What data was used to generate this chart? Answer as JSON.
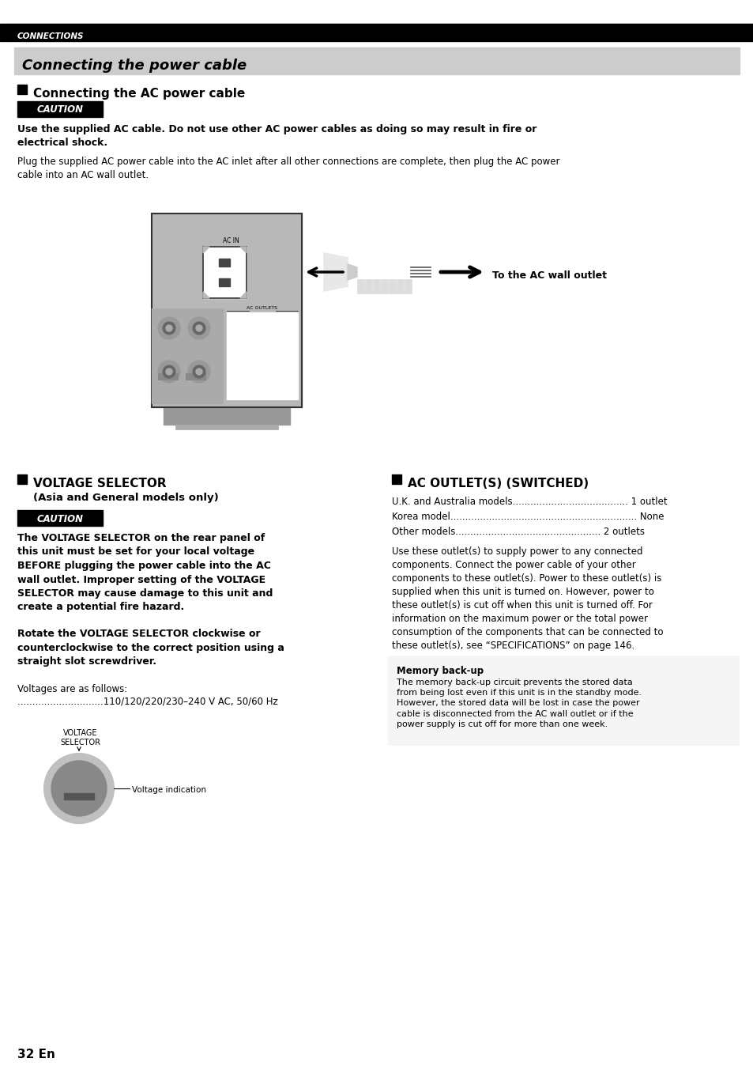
{
  "page_bg": "#ffffff",
  "header_bar_color": "#000000",
  "header_text": "CONNECTIONS",
  "header_text_color": "#ffffff",
  "title_bg": "#cccccc",
  "title_text": "Connecting the power cable",
  "title_text_color": "#000000",
  "section1_heading": "Connecting the AC power cable",
  "caution_bg": "#000000",
  "caution_text": "CAUTION",
  "caution_text_color": "#ffffff",
  "bold_warning": "Use the supplied AC cable. Do not use other AC power cables as doing so may result in fire or\nelectrical shock.",
  "normal_text1": "Plug the supplied AC power cable into the AC inlet after all other connections are complete, then plug the AC power\ncable into an AC wall outlet.",
  "section2_heading": "VOLTAGE SELECTOR",
  "section2_subheading": "(Asia and General models only)",
  "voltage_bold1": "The VOLTAGE SELECTOR on the rear panel of\nthis unit must be set for your local voltage\nBEFORE plugging the power cable into the AC\nwall outlet. Improper setting of the VOLTAGE\nSELECTOR may cause damage to this unit and\ncreate a potential fire hazard.",
  "voltage_bold2": "Rotate the VOLTAGE SELECTOR clockwise or\ncounterclockwise to the correct position using a\nstraight slot screwdriver.",
  "voltage_normal1": "Voltages are as follows:",
  "voltage_normal2": ".............................110/120/220/230–240 V AC, 50/60 Hz",
  "section3_heading": "AC OUTLET(S) (SWITCHED)",
  "outlet_line1": "U.K. and Australia models.......................................",
  "outlet_val1": " 1 outlet",
  "outlet_line2": "Korea model...............................................................",
  "outlet_val2": " None",
  "outlet_line3": "Other models.................................................",
  "outlet_val3": " 2 outlets",
  "outlet_normal": "Use these outlet(s) to supply power to any connected\ncomponents. Connect the power cable of your other\ncomponents to these outlet(s). Power to these outlet(s) is\nsupplied when this unit is turned on. However, power to\nthese outlet(s) is cut off when this unit is turned off. For\ninformation on the maximum power or the total power\nconsumption of the components that can be connected to\nthese outlet(s), see “SPECIFICATIONS” on page 146.",
  "memory_box_title": "Memory back-up",
  "memory_box_text": "The memory back-up circuit prevents the stored data\nfrom being lost even if this unit is in the standby mode.\nHowever, the stored data will be lost in case the power\ncable is disconnected from the AC wall outlet or if the\npower supply is cut off for more than one week.",
  "page_number": "32 En",
  "panel_color": "#b8b8b8",
  "panel_edge": "#333333",
  "to_ac_wall": "To the AC wall outlet"
}
